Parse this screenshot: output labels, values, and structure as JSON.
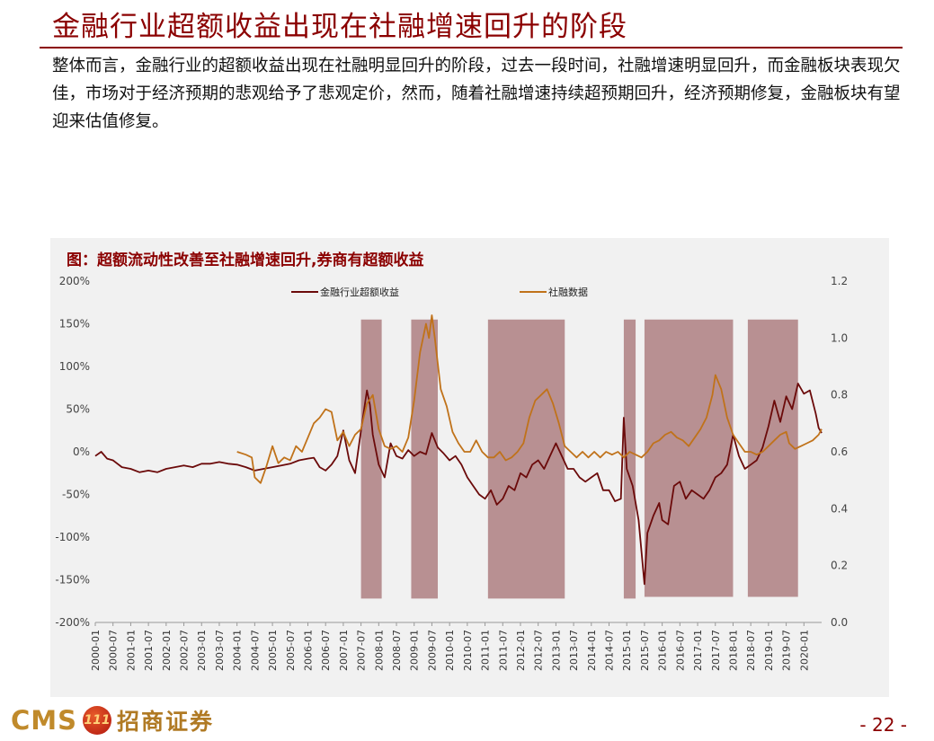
{
  "slide": {
    "title": "金融行业超额收益出现在社融增速回升的阶段",
    "paragraph": "整体而言，金融行业的超额收益出现在社融明显回升的阶段，过去一段时间，社融增速明显回升，而金融板块表现欠佳，市场对于经济预期的悲观给予了悲观定价，然而，随着社融增速持续超预期回升，经济预期修复，金融板块有望迎来估值修复。"
  },
  "chart_title": "图：超额流动性改善至社融增速回升,券商有超额收益",
  "footer": {
    "logo_text": "CMS",
    "logo_badge": "111",
    "logo_name": "招商证券",
    "page_number": "- 22 -"
  },
  "colors": {
    "accent": "#8b0000",
    "series_excess": "#6b0a0a",
    "series_tsf": "#c0721a",
    "shade": "#b48a8c",
    "panel": "#f1f1f1"
  },
  "chart_data": {
    "type": "line",
    "y_left": {
      "min": -200,
      "max": 200,
      "ticks": [
        200,
        150,
        100,
        50,
        0,
        -50,
        -100,
        -150,
        -200
      ],
      "tick_labels": [
        "200%",
        "150%",
        "100%",
        "50%",
        "0%",
        "-50%",
        "-100%",
        "-150%",
        "-200%"
      ]
    },
    "y_right": {
      "min": 0.0,
      "max": 1.2,
      "ticks": [
        1.2,
        1.0,
        0.8,
        0.6,
        0.4,
        0.2,
        0.0
      ],
      "tick_labels": [
        "1.2",
        "1.0",
        "0.8",
        "0.6",
        "0.4",
        "0.2",
        "0.0"
      ]
    },
    "x_tick_labels": [
      "2000-01",
      "2000-07",
      "2001-01",
      "2001-07",
      "2002-01",
      "2002-07",
      "2003-01",
      "2003-07",
      "2004-01",
      "2004-07",
      "2005-01",
      "2005-07",
      "2006-01",
      "2006-07",
      "2007-01",
      "2007-07",
      "2008-01",
      "2008-07",
      "2009-01",
      "2009-07",
      "2010-01",
      "2010-07",
      "2011-01",
      "2011-07",
      "2012-01",
      "2012-07",
      "2013-01",
      "2013-07",
      "2014-01",
      "2014-07",
      "2015-01",
      "2015-07",
      "2016-01",
      "2016-07",
      "2017-01",
      "2017-07",
      "2018-01",
      "2018-07",
      "2019-01",
      "2019-07",
      "2020-01"
    ],
    "shaded_periods": [
      {
        "start": "2007-07",
        "end": "2008-02",
        "y_top_left": 155,
        "y_bottom_left": -172
      },
      {
        "start": "2008-12",
        "end": "2009-09",
        "y_top_left": 155,
        "y_bottom_left": -172
      },
      {
        "start": "2011-02",
        "end": "2013-04",
        "y_top_left": 155,
        "y_bottom_left": -172
      },
      {
        "start": "2014-12",
        "end": "2015-04",
        "y_top_left": 155,
        "y_bottom_left": -172
      },
      {
        "start": "2015-07",
        "end": "2018-01",
        "y_top_left": 155,
        "y_bottom_left": -170
      },
      {
        "start": "2018-06",
        "end": "2019-11",
        "y_top_left": 155,
        "y_bottom_left": -170
      }
    ],
    "series": [
      {
        "name": "金融行业超额收益",
        "axis": "left",
        "color": "#6b0a0a",
        "points": [
          [
            "2000-01",
            -5
          ],
          [
            "2000-03",
            0
          ],
          [
            "2000-05",
            -8
          ],
          [
            "2000-07",
            -10
          ],
          [
            "2000-10",
            -18
          ],
          [
            "2001-01",
            -20
          ],
          [
            "2001-04",
            -24
          ],
          [
            "2001-07",
            -22
          ],
          [
            "2001-10",
            -24
          ],
          [
            "2002-01",
            -20
          ],
          [
            "2002-04",
            -18
          ],
          [
            "2002-07",
            -16
          ],
          [
            "2002-10",
            -18
          ],
          [
            "2003-01",
            -14
          ],
          [
            "2003-04",
            -14
          ],
          [
            "2003-07",
            -12
          ],
          [
            "2003-10",
            -14
          ],
          [
            "2004-01",
            -15
          ],
          [
            "2004-04",
            -18
          ],
          [
            "2004-07",
            -22
          ],
          [
            "2004-10",
            -20
          ],
          [
            "2005-01",
            -18
          ],
          [
            "2005-04",
            -16
          ],
          [
            "2005-07",
            -14
          ],
          [
            "2005-10",
            -10
          ],
          [
            "2006-01",
            -8
          ],
          [
            "2006-03",
            -7
          ],
          [
            "2006-05",
            -18
          ],
          [
            "2006-07",
            -22
          ],
          [
            "2006-09",
            -15
          ],
          [
            "2006-11",
            -5
          ],
          [
            "2007-01",
            25
          ],
          [
            "2007-03",
            -10
          ],
          [
            "2007-05",
            -25
          ],
          [
            "2007-07",
            25
          ],
          [
            "2007-09",
            72
          ],
          [
            "2007-10",
            55
          ],
          [
            "2007-11",
            20
          ],
          [
            "2008-01",
            -15
          ],
          [
            "2008-03",
            -30
          ],
          [
            "2008-05",
            10
          ],
          [
            "2008-07",
            -5
          ],
          [
            "2008-09",
            -8
          ],
          [
            "2008-11",
            2
          ],
          [
            "2009-01",
            -5
          ],
          [
            "2009-03",
            0
          ],
          [
            "2009-05",
            -3
          ],
          [
            "2009-07",
            22
          ],
          [
            "2009-09",
            5
          ],
          [
            "2009-11",
            -2
          ],
          [
            "2010-01",
            -10
          ],
          [
            "2010-03",
            -5
          ],
          [
            "2010-05",
            -15
          ],
          [
            "2010-07",
            -30
          ],
          [
            "2010-09",
            -40
          ],
          [
            "2010-11",
            -50
          ],
          [
            "2011-01",
            -55
          ],
          [
            "2011-03",
            -45
          ],
          [
            "2011-05",
            -62
          ],
          [
            "2011-07",
            -55
          ],
          [
            "2011-09",
            -40
          ],
          [
            "2011-11",
            -45
          ],
          [
            "2012-01",
            -25
          ],
          [
            "2012-03",
            -30
          ],
          [
            "2012-05",
            -15
          ],
          [
            "2012-07",
            -10
          ],
          [
            "2012-09",
            -20
          ],
          [
            "2012-11",
            -5
          ],
          [
            "2013-01",
            10
          ],
          [
            "2013-03",
            -5
          ],
          [
            "2013-05",
            -20
          ],
          [
            "2013-07",
            -20
          ],
          [
            "2013-09",
            -30
          ],
          [
            "2013-11",
            -35
          ],
          [
            "2014-01",
            -30
          ],
          [
            "2014-03",
            -25
          ],
          [
            "2014-05",
            -45
          ],
          [
            "2014-07",
            -45
          ],
          [
            "2014-09",
            -58
          ],
          [
            "2014-11",
            -55
          ],
          [
            "2014-12",
            40
          ],
          [
            "2015-01",
            -20
          ],
          [
            "2015-03",
            -40
          ],
          [
            "2015-05",
            -80
          ],
          [
            "2015-07",
            -155
          ],
          [
            "2015-08",
            -95
          ],
          [
            "2015-10",
            -75
          ],
          [
            "2015-12",
            -60
          ],
          [
            "2016-01",
            -80
          ],
          [
            "2016-03",
            -85
          ],
          [
            "2016-05",
            -40
          ],
          [
            "2016-07",
            -35
          ],
          [
            "2016-09",
            -55
          ],
          [
            "2016-11",
            -45
          ],
          [
            "2017-01",
            -50
          ],
          [
            "2017-03",
            -55
          ],
          [
            "2017-05",
            -45
          ],
          [
            "2017-07",
            -30
          ],
          [
            "2017-09",
            -25
          ],
          [
            "2017-11",
            -15
          ],
          [
            "2018-01",
            20
          ],
          [
            "2018-03",
            -5
          ],
          [
            "2018-05",
            -20
          ],
          [
            "2018-07",
            -15
          ],
          [
            "2018-09",
            -10
          ],
          [
            "2018-11",
            5
          ],
          [
            "2019-01",
            30
          ],
          [
            "2019-03",
            60
          ],
          [
            "2019-05",
            35
          ],
          [
            "2019-07",
            65
          ],
          [
            "2019-09",
            50
          ],
          [
            "2019-11",
            80
          ],
          [
            "2020-01",
            68
          ],
          [
            "2020-03",
            72
          ],
          [
            "2020-05",
            45
          ],
          [
            "2020-06",
            28
          ],
          [
            "2020-07",
            22
          ]
        ]
      },
      {
        "name": "社融数据",
        "axis": "right",
        "color": "#c0721a",
        "points": [
          [
            "2004-01",
            0.6
          ],
          [
            "2004-04",
            0.59
          ],
          [
            "2004-06",
            0.58
          ],
          [
            "2004-07",
            0.51
          ],
          [
            "2004-09",
            0.49
          ],
          [
            "2004-11",
            0.55
          ],
          [
            "2005-01",
            0.62
          ],
          [
            "2005-03",
            0.56
          ],
          [
            "2005-05",
            0.58
          ],
          [
            "2005-07",
            0.57
          ],
          [
            "2005-09",
            0.62
          ],
          [
            "2005-11",
            0.6
          ],
          [
            "2006-01",
            0.65
          ],
          [
            "2006-03",
            0.7
          ],
          [
            "2006-05",
            0.72
          ],
          [
            "2006-07",
            0.75
          ],
          [
            "2006-09",
            0.74
          ],
          [
            "2006-11",
            0.64
          ],
          [
            "2007-01",
            0.67
          ],
          [
            "2007-03",
            0.62
          ],
          [
            "2007-05",
            0.66
          ],
          [
            "2007-07",
            0.68
          ],
          [
            "2007-09",
            0.77
          ],
          [
            "2007-11",
            0.8
          ],
          [
            "2008-01",
            0.68
          ],
          [
            "2008-03",
            0.62
          ],
          [
            "2008-05",
            0.61
          ],
          [
            "2008-07",
            0.62
          ],
          [
            "2008-09",
            0.6
          ],
          [
            "2008-11",
            0.65
          ],
          [
            "2009-01",
            0.78
          ],
          [
            "2009-03",
            0.95
          ],
          [
            "2009-05",
            1.05
          ],
          [
            "2009-06",
            1.0
          ],
          [
            "2009-07",
            1.08
          ],
          [
            "2009-08",
            1.0
          ],
          [
            "2009-10",
            0.82
          ],
          [
            "2009-12",
            0.76
          ],
          [
            "2010-02",
            0.67
          ],
          [
            "2010-04",
            0.63
          ],
          [
            "2010-06",
            0.6
          ],
          [
            "2010-08",
            0.6
          ],
          [
            "2010-10",
            0.64
          ],
          [
            "2010-12",
            0.6
          ],
          [
            "2011-02",
            0.58
          ],
          [
            "2011-04",
            0.58
          ],
          [
            "2011-06",
            0.6
          ],
          [
            "2011-08",
            0.57
          ],
          [
            "2011-10",
            0.58
          ],
          [
            "2011-12",
            0.6
          ],
          [
            "2012-02",
            0.63
          ],
          [
            "2012-04",
            0.72
          ],
          [
            "2012-06",
            0.78
          ],
          [
            "2012-08",
            0.8
          ],
          [
            "2012-10",
            0.82
          ],
          [
            "2012-12",
            0.77
          ],
          [
            "2013-02",
            0.7
          ],
          [
            "2013-04",
            0.62
          ],
          [
            "2013-06",
            0.6
          ],
          [
            "2013-08",
            0.58
          ],
          [
            "2013-10",
            0.6
          ],
          [
            "2013-12",
            0.58
          ],
          [
            "2014-02",
            0.6
          ],
          [
            "2014-04",
            0.58
          ],
          [
            "2014-06",
            0.6
          ],
          [
            "2014-08",
            0.59
          ],
          [
            "2014-10",
            0.6
          ],
          [
            "2014-12",
            0.58
          ],
          [
            "2015-02",
            0.6
          ],
          [
            "2015-04",
            0.59
          ],
          [
            "2015-06",
            0.58
          ],
          [
            "2015-08",
            0.6
          ],
          [
            "2015-10",
            0.63
          ],
          [
            "2015-12",
            0.64
          ],
          [
            "2016-02",
            0.66
          ],
          [
            "2016-04",
            0.67
          ],
          [
            "2016-06",
            0.65
          ],
          [
            "2016-08",
            0.64
          ],
          [
            "2016-10",
            0.62
          ],
          [
            "2016-12",
            0.65
          ],
          [
            "2017-02",
            0.68
          ],
          [
            "2017-04",
            0.72
          ],
          [
            "2017-06",
            0.8
          ],
          [
            "2017-07",
            0.87
          ],
          [
            "2017-09",
            0.82
          ],
          [
            "2017-11",
            0.72
          ],
          [
            "2018-01",
            0.66
          ],
          [
            "2018-03",
            0.63
          ],
          [
            "2018-05",
            0.6
          ],
          [
            "2018-07",
            0.6
          ],
          [
            "2018-09",
            0.59
          ],
          [
            "2018-11",
            0.6
          ],
          [
            "2019-01",
            0.62
          ],
          [
            "2019-03",
            0.64
          ],
          [
            "2019-05",
            0.66
          ],
          [
            "2019-07",
            0.67
          ],
          [
            "2019-08",
            0.63
          ],
          [
            "2019-10",
            0.61
          ],
          [
            "2019-12",
            0.62
          ],
          [
            "2020-02",
            0.63
          ],
          [
            "2020-04",
            0.64
          ],
          [
            "2020-06",
            0.66
          ],
          [
            "2020-07",
            0.68
          ]
        ]
      }
    ]
  }
}
